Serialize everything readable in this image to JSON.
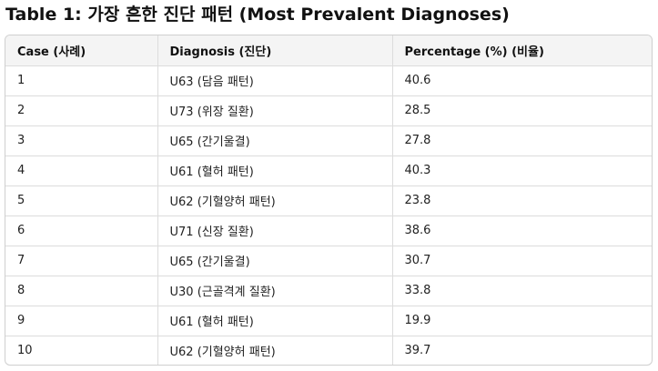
{
  "title": "Table 1: 가장 흔한 진단 패턴 (Most Prevalent Diagnoses)",
  "headers": [
    "Case (사례)",
    "Diagnosis (진단)",
    "Percentage (%) (비율)"
  ],
  "rows": [
    [
      "1",
      "U63 (담음 패턴)",
      "40.6"
    ],
    [
      "2",
      "U73 (위장 질환)",
      "28.5"
    ],
    [
      "3",
      "U65 (간기울결)",
      "27.8"
    ],
    [
      "4",
      "U61 (혈허 패턴)",
      "40.3"
    ],
    [
      "5",
      "U62 (기혈양허 패턴)",
      "23.8"
    ],
    [
      "6",
      "U71 (신장 질환)",
      "38.6"
    ],
    [
      "7",
      "U65 (간기울결)",
      "30.7"
    ],
    [
      "8",
      "U30 (근골격계 질환)",
      "33.8"
    ],
    [
      "9",
      "U61 (혈허 패턴)",
      "19.9"
    ],
    [
      "10",
      "U62 (기혈양허 패턴)",
      "39.7"
    ]
  ]
}
